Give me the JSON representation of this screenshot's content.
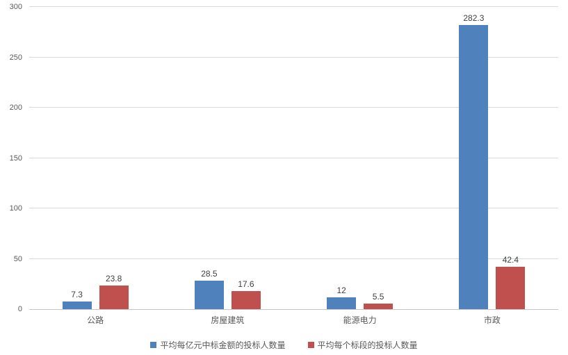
{
  "chart_data": {
    "type": "bar",
    "title": "",
    "categories": [
      "公路",
      "房屋建筑",
      "能源电力",
      "市政"
    ],
    "series": [
      {
        "name": "平均每亿元中标金额的投标人数量",
        "color": "#4F81BD",
        "values": [
          7.3,
          28.5,
          12,
          282.3
        ]
      },
      {
        "name": "平均每个标段的投标人数量",
        "color": "#C0504D",
        "values": [
          23.8,
          17.6,
          5.5,
          42.4
        ]
      }
    ],
    "xlabel": "",
    "ylabel": "",
    "ylim": [
      0,
      300
    ],
    "yticks": [
      "0",
      "50",
      "100",
      "150",
      "200",
      "250",
      "300"
    ],
    "grid": "horizontal",
    "gridline_color": "#D9D9D9",
    "legend_position": "bottom"
  }
}
